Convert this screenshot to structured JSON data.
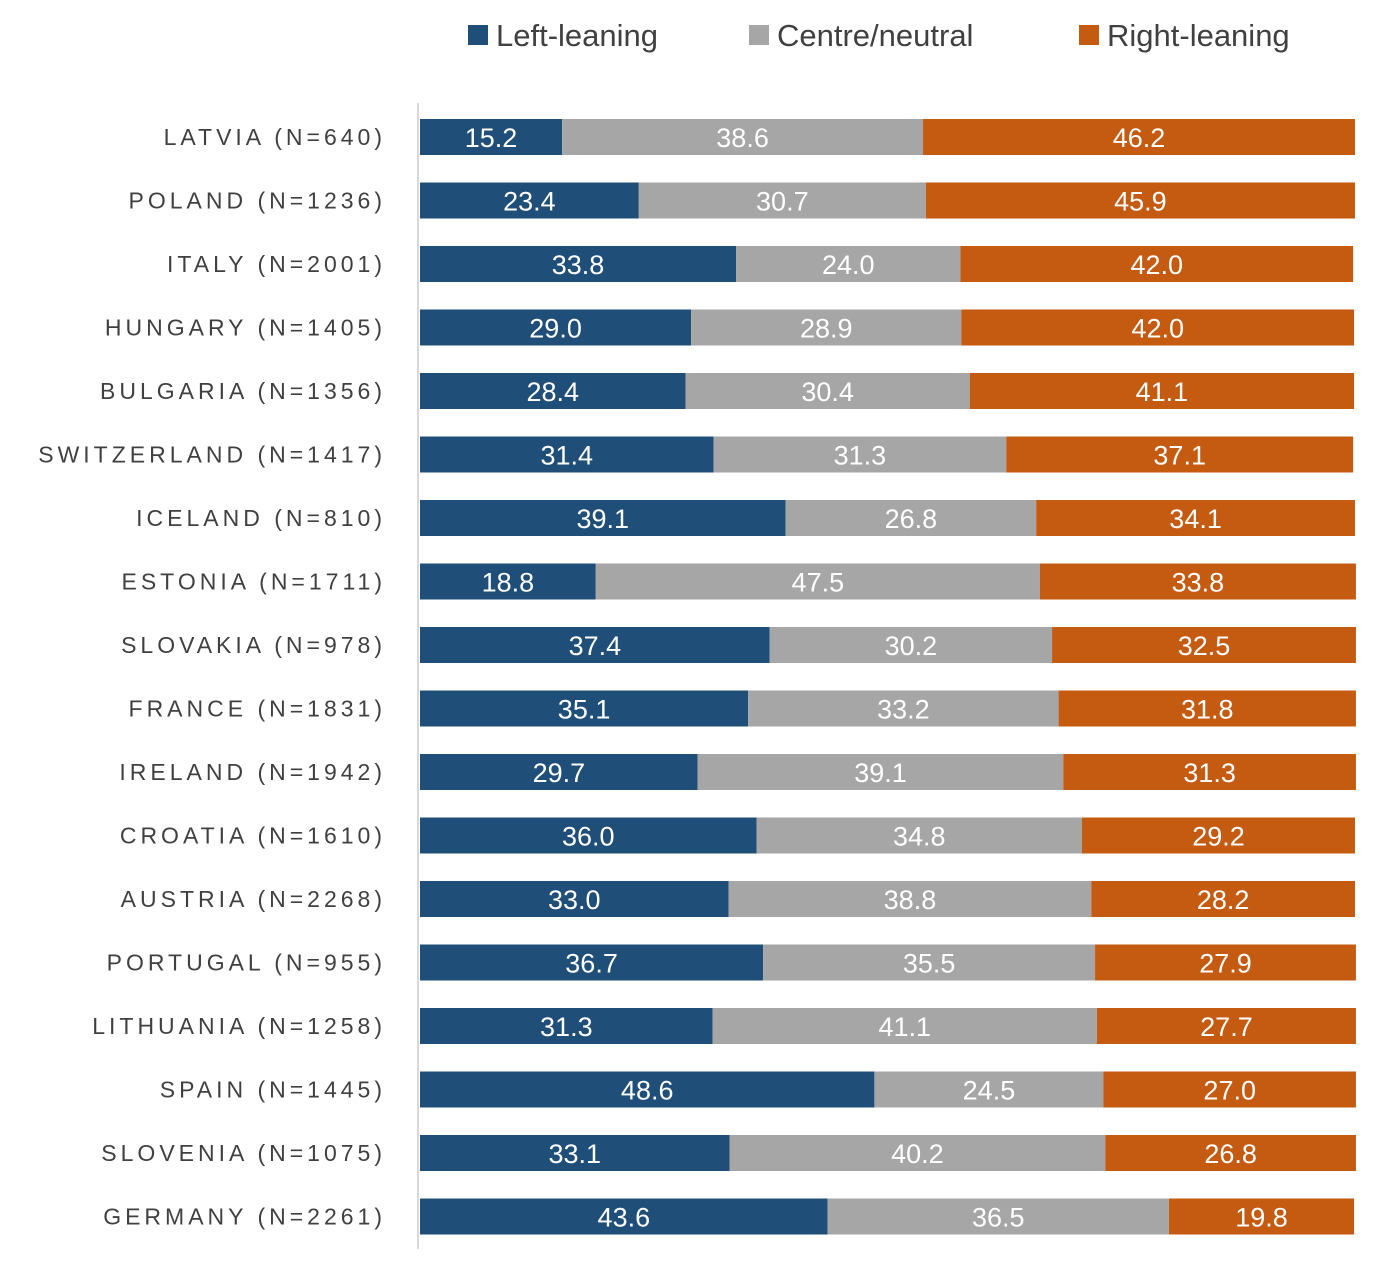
{
  "chart_data": {
    "type": "bar",
    "orientation": "horizontal",
    "stacked": true,
    "title": "",
    "xlabel": "",
    "ylabel": "",
    "xlim": [
      0,
      100
    ],
    "grid": false,
    "legend_position": "top-right",
    "categories": [
      "LATVIA (N=640)",
      "POLAND (N=1236)",
      "ITALY (N=2001)",
      "HUNGARY (N=1405)",
      "BULGARIA (N=1356)",
      "SWITZERLAND (N=1417)",
      "ICELAND (N=810)",
      "ESTONIA (N=1711)",
      "SLOVAKIA (N=978)",
      "FRANCE (N=1831)",
      "IRELAND (N=1942)",
      "CROATIA (N=1610)",
      "AUSTRIA (N=2268)",
      "PORTUGAL (N=955)",
      "LITHUANIA (N=1258)",
      "SPAIN (N=1445)",
      "SLOVENIA (N=1075)",
      "GERMANY (N=2261)"
    ],
    "series": [
      {
        "name": "Left-leaning",
        "color": "#1f4e79",
        "values": [
          15.2,
          23.4,
          33.8,
          29.0,
          28.4,
          31.4,
          39.1,
          18.8,
          37.4,
          35.1,
          29.7,
          36.0,
          33.0,
          36.7,
          31.3,
          48.6,
          33.1,
          43.6
        ]
      },
      {
        "name": "Centre/neutral",
        "color": "#a6a6a6",
        "values": [
          38.6,
          30.7,
          24.0,
          28.9,
          30.4,
          31.3,
          26.8,
          47.5,
          30.2,
          33.2,
          39.1,
          34.8,
          38.8,
          35.5,
          41.1,
          24.5,
          40.2,
          36.5
        ]
      },
      {
        "name": "Right-leaning",
        "color": "#c55a11",
        "values": [
          46.2,
          45.9,
          42.0,
          42.0,
          41.1,
          37.1,
          34.1,
          33.8,
          32.5,
          31.8,
          31.3,
          29.2,
          28.2,
          27.9,
          27.7,
          27.0,
          26.8,
          19.8
        ]
      }
    ]
  }
}
